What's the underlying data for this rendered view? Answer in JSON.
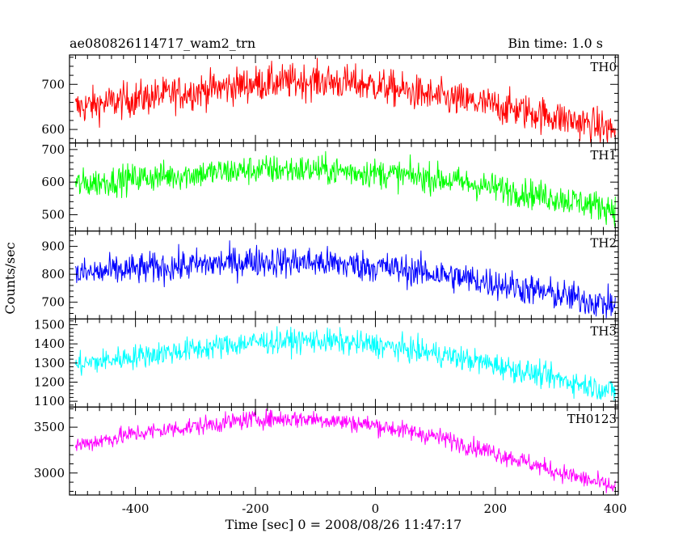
{
  "header": {
    "title": "ae080826114717_wam2_trn",
    "bin_time": "Bin time: 1.0 s"
  },
  "chart_data": {
    "type": "line",
    "xlabel": "Time [sec] 0 = 2008/08/26 11:47:17",
    "ylabel": "Counts/sec",
    "xlim": [
      -510,
      405
    ],
    "x_ticks": [
      -400,
      -200,
      0,
      200,
      400
    ],
    "panels": [
      {
        "name": "TH0",
        "color": "#ff0000",
        "ylim": [
          570,
          765
        ],
        "y_ticks": [
          600,
          700
        ],
        "trend": [
          [
            -500,
            648
          ],
          [
            -400,
            668
          ],
          [
            -200,
            702
          ],
          [
            -100,
            708
          ],
          [
            0,
            698
          ],
          [
            100,
            672
          ],
          [
            200,
            652
          ],
          [
            300,
            628
          ],
          [
            400,
            598
          ]
        ],
        "noise": 28
      },
      {
        "name": "TH1",
        "color": "#00ff00",
        "ylim": [
          450,
          720
        ],
        "y_ticks": [
          500,
          600,
          700
        ],
        "trend": [
          [
            -500,
            592
          ],
          [
            -400,
            612
          ],
          [
            -200,
            638
          ],
          [
            -100,
            638
          ],
          [
            0,
            628
          ],
          [
            100,
            612
          ],
          [
            200,
            582
          ],
          [
            300,
            552
          ],
          [
            400,
            518
          ]
        ],
        "noise": 32
      },
      {
        "name": "TH2",
        "color": "#0000ff",
        "ylim": [
          640,
          955
        ],
        "y_ticks": [
          700,
          800,
          900
        ],
        "trend": [
          [
            -500,
            800
          ],
          [
            -400,
            818
          ],
          [
            -200,
            848
          ],
          [
            -100,
            842
          ],
          [
            0,
            828
          ],
          [
            100,
            802
          ],
          [
            200,
            768
          ],
          [
            300,
            728
          ],
          [
            400,
            688
          ]
        ],
        "noise": 40
      },
      {
        "name": "TH3",
        "color": "#00ffff",
        "ylim": [
          1070,
          1530
        ],
        "y_ticks": [
          1100,
          1200,
          1300,
          1400,
          1500
        ],
        "trend": [
          [
            -500,
            1290
          ],
          [
            -400,
            1335
          ],
          [
            -200,
            1410
          ],
          [
            -100,
            1418
          ],
          [
            0,
            1395
          ],
          [
            100,
            1350
          ],
          [
            200,
            1290
          ],
          [
            300,
            1220
          ],
          [
            400,
            1150
          ]
        ],
        "noise": 45
      },
      {
        "name": "TH0123",
        "color": "#ff00ff",
        "ylim": [
          2760,
          3720
        ],
        "y_ticks": [
          3000,
          3500
        ],
        "trend": [
          [
            -500,
            3300
          ],
          [
            -400,
            3430
          ],
          [
            -200,
            3590
          ],
          [
            -100,
            3590
          ],
          [
            0,
            3520
          ],
          [
            100,
            3400
          ],
          [
            200,
            3220
          ],
          [
            300,
            3020
          ],
          [
            400,
            2840
          ]
        ],
        "noise": 70
      }
    ]
  }
}
